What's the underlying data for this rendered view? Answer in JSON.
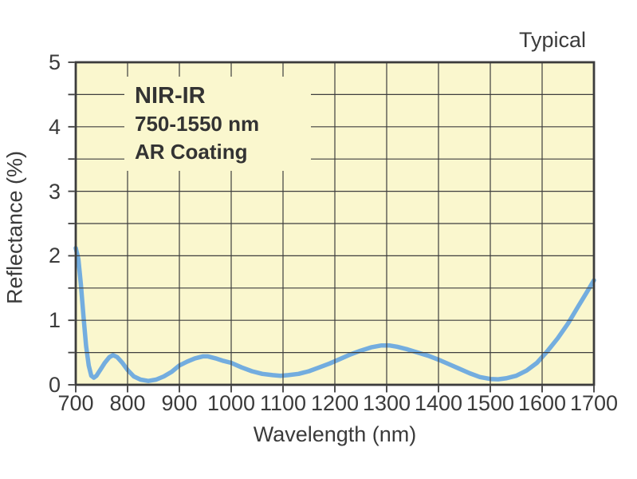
{
  "chart_data": {
    "type": "line",
    "title": "Typical",
    "xlabel": "Wavelength (nm)",
    "ylabel": "Reflectance (%)",
    "xlim": [
      700,
      1700
    ],
    "ylim": [
      0,
      5
    ],
    "x_ticks": [
      700,
      800,
      900,
      1000,
      1100,
      1200,
      1300,
      1400,
      1500,
      1600,
      1700
    ],
    "y_ticks": [
      0,
      1,
      2,
      3,
      4,
      5
    ],
    "y_minor_step": 0.5,
    "grid": "on",
    "annotation": {
      "line1": "NIR-IR",
      "line2": "750-1550 nm",
      "line3": "AR Coating"
    },
    "series": [
      {
        "name": "NIR-IR 750-1550 nm AR Coating",
        "points": [
          [
            700,
            2.12
          ],
          [
            705,
            1.95
          ],
          [
            710,
            1.55
          ],
          [
            715,
            1.05
          ],
          [
            720,
            0.6
          ],
          [
            725,
            0.3
          ],
          [
            730,
            0.14
          ],
          [
            735,
            0.11
          ],
          [
            740,
            0.14
          ],
          [
            748,
            0.24
          ],
          [
            756,
            0.34
          ],
          [
            765,
            0.43
          ],
          [
            772,
            0.46
          ],
          [
            780,
            0.43
          ],
          [
            790,
            0.34
          ],
          [
            800,
            0.23
          ],
          [
            812,
            0.13
          ],
          [
            825,
            0.08
          ],
          [
            840,
            0.06
          ],
          [
            855,
            0.08
          ],
          [
            870,
            0.13
          ],
          [
            885,
            0.2
          ],
          [
            900,
            0.3
          ],
          [
            915,
            0.36
          ],
          [
            930,
            0.41
          ],
          [
            945,
            0.44
          ],
          [
            955,
            0.44
          ],
          [
            970,
            0.41
          ],
          [
            985,
            0.37
          ],
          [
            1000,
            0.34
          ],
          [
            1020,
            0.27
          ],
          [
            1040,
            0.21
          ],
          [
            1060,
            0.17
          ],
          [
            1080,
            0.15
          ],
          [
            1095,
            0.14
          ],
          [
            1110,
            0.15
          ],
          [
            1130,
            0.17
          ],
          [
            1150,
            0.21
          ],
          [
            1170,
            0.27
          ],
          [
            1190,
            0.33
          ],
          [
            1210,
            0.4
          ],
          [
            1230,
            0.47
          ],
          [
            1250,
            0.53
          ],
          [
            1270,
            0.58
          ],
          [
            1290,
            0.61
          ],
          [
            1305,
            0.61
          ],
          [
            1320,
            0.59
          ],
          [
            1340,
            0.55
          ],
          [
            1360,
            0.5
          ],
          [
            1380,
            0.45
          ],
          [
            1400,
            0.39
          ],
          [
            1420,
            0.32
          ],
          [
            1440,
            0.25
          ],
          [
            1460,
            0.18
          ],
          [
            1480,
            0.12
          ],
          [
            1500,
            0.09
          ],
          [
            1515,
            0.085
          ],
          [
            1530,
            0.1
          ],
          [
            1550,
            0.14
          ],
          [
            1570,
            0.22
          ],
          [
            1590,
            0.34
          ],
          [
            1610,
            0.52
          ],
          [
            1630,
            0.72
          ],
          [
            1650,
            0.95
          ],
          [
            1670,
            1.22
          ],
          [
            1685,
            1.42
          ],
          [
            1700,
            1.62
          ]
        ]
      }
    ],
    "colors": {
      "curve": "#73ADDF",
      "plot_bg": "#FAF7CE",
      "grid": "#3E3E3E",
      "border": "#3C3C3C",
      "text": "#3B3B3B"
    }
  }
}
